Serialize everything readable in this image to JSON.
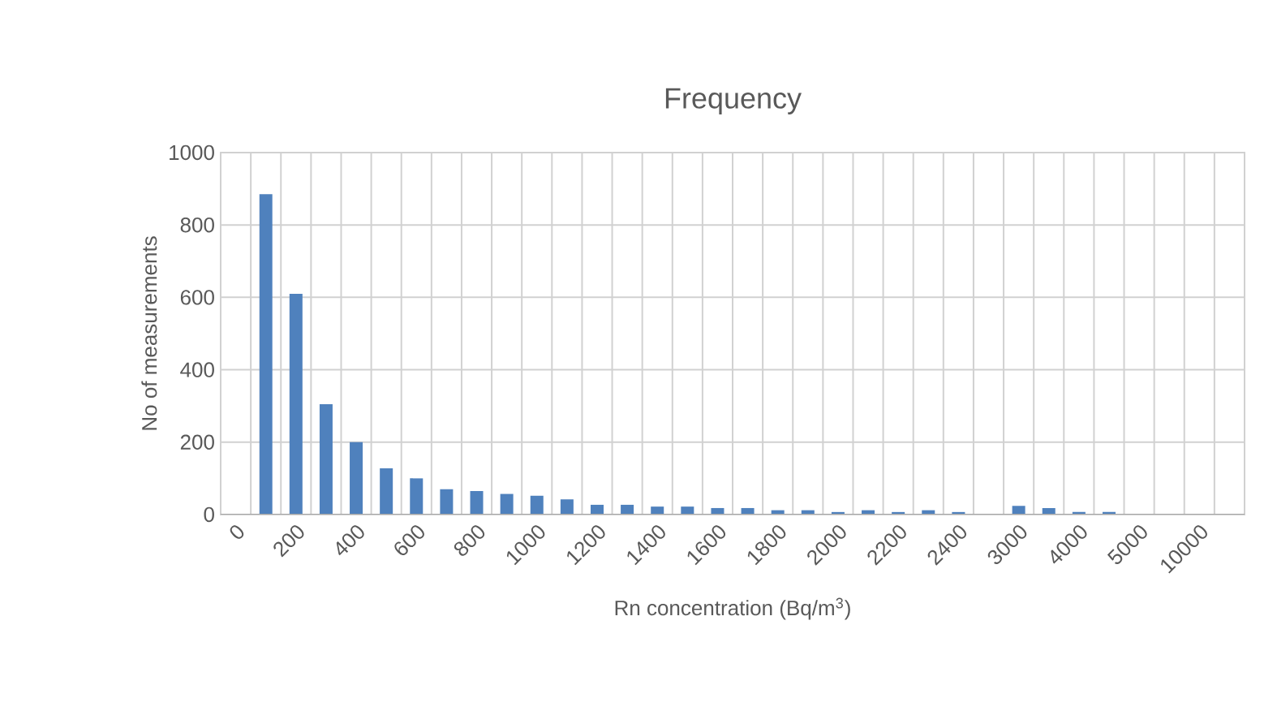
{
  "chart_data": {
    "type": "bar",
    "title": "Frequency",
    "xlabel": "Rn concentration (Bq/m$^{3}$)",
    "ylabel": "No of measurements",
    "categories": [
      "0",
      null,
      "200",
      null,
      "400",
      null,
      "600",
      null,
      "800",
      null,
      "1000",
      null,
      "1200",
      null,
      "1400",
      null,
      "1600",
      null,
      "1800",
      null,
      "2000",
      null,
      "2200",
      null,
      "2400",
      null,
      "3000",
      null,
      "4000",
      null,
      "5000",
      null,
      "10000",
      null
    ],
    "values": [
      null,
      885,
      610,
      305,
      200,
      128,
      100,
      70,
      65,
      57,
      52,
      42,
      27,
      27,
      22,
      22,
      18,
      18,
      12,
      12,
      7,
      12,
      7,
      12,
      7,
      null,
      24,
      18,
      7,
      7,
      null,
      null,
      null,
      null
    ],
    "color": "#4f81bd",
    "ylim": [
      0,
      1000
    ],
    "yticks": [
      0,
      200,
      400,
      600,
      800,
      1000
    ],
    "grid": true
  }
}
